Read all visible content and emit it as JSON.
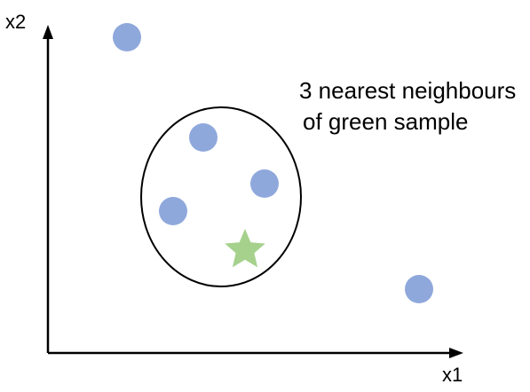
{
  "axes": {
    "x_label": "x1",
    "y_label": "x2"
  },
  "annotation": {
    "line1": "3 nearest neighbours",
    "line2": "of green sample"
  },
  "colors": {
    "sample_point": "#8fa8dc",
    "query_point": "#a6d18d",
    "axis": "#000000",
    "ellipse": "#000000"
  },
  "points": [
    {
      "id": "sample-point-top-left",
      "shape": "circle",
      "class": "sample"
    },
    {
      "id": "neighbour-point-1",
      "shape": "circle",
      "class": "sample",
      "neighbour": true
    },
    {
      "id": "neighbour-point-2",
      "shape": "circle",
      "class": "sample",
      "neighbour": true
    },
    {
      "id": "neighbour-point-3",
      "shape": "circle",
      "class": "sample",
      "neighbour": true
    },
    {
      "id": "sample-point-bottom-right",
      "shape": "circle",
      "class": "sample"
    },
    {
      "id": "green-sample-star",
      "shape": "star",
      "class": "query"
    }
  ]
}
